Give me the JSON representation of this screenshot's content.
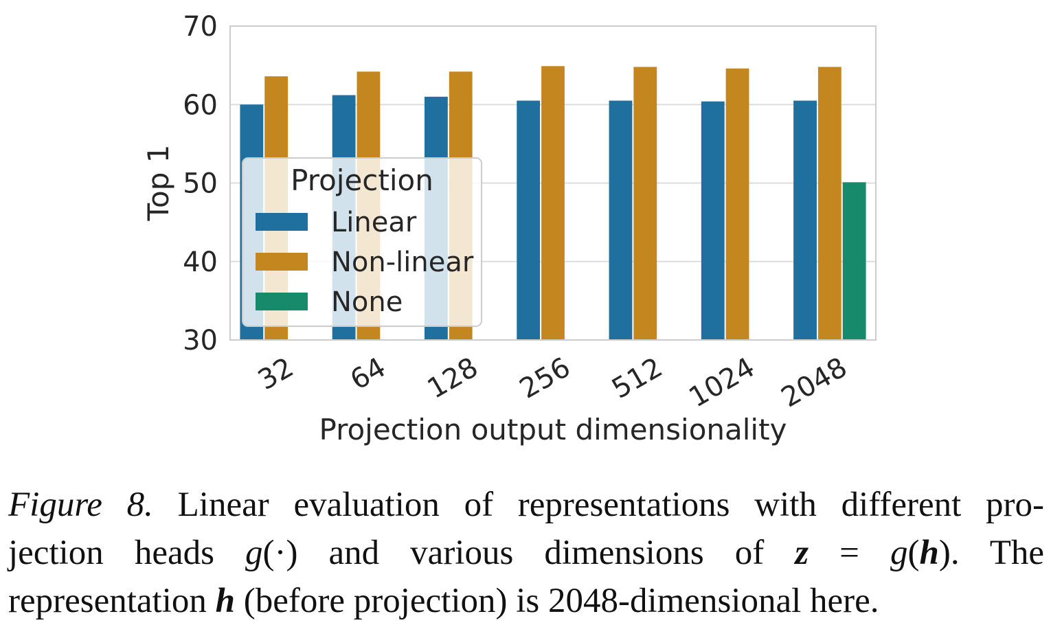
{
  "chart_data": {
    "type": "bar",
    "xlabel": "Projection output dimensionality",
    "ylabel": "Top 1",
    "categories": [
      "32",
      "64",
      "128",
      "256",
      "512",
      "1024",
      "2048"
    ],
    "ylim": [
      30,
      70
    ],
    "yticks": [
      30,
      40,
      50,
      60,
      70
    ],
    "grid": true,
    "legend": {
      "title": "Projection",
      "placement": "center-left"
    },
    "series": [
      {
        "name": "Linear",
        "color": "#1f6f9f",
        "values": [
          60.0,
          61.2,
          61.0,
          60.5,
          60.5,
          60.4,
          60.5
        ]
      },
      {
        "name": "Non-linear",
        "color": "#c4871f",
        "values": [
          63.6,
          64.2,
          64.2,
          64.9,
          64.8,
          64.6,
          64.8
        ]
      },
      {
        "name": "None",
        "color": "#168a6a",
        "values": [
          null,
          null,
          null,
          null,
          null,
          null,
          50.1
        ]
      }
    ]
  },
  "caption": {
    "figure_label": "Figure 8.",
    "line1_rest": " Linear evaluation of representations with different pro-",
    "line2_a": "jection heads ",
    "line2_g": "g",
    "line2_b": "(·) and various dimensions of ",
    "line2_z": "z",
    "line2_eq": " = ",
    "line2_g2": "g",
    "line2_paren_open": "(",
    "line2_h": "h",
    "line2_c": ").  The",
    "line3_a": "representation ",
    "line3_h": "h",
    "line3_b": " (before projection) is 2048-dimensional here."
  }
}
